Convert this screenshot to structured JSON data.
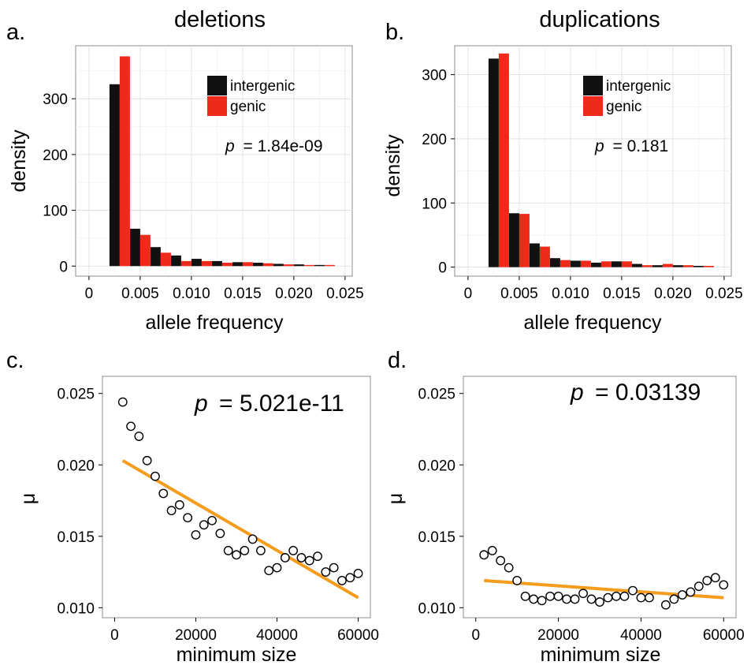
{
  "chart_data": [
    {
      "panel": "a.",
      "type": "bar",
      "title": "deletions",
      "xlabel": "allele frequency",
      "ylabel": "density",
      "annotation_italic": "p",
      "annotation_value": "= 1.84e-09",
      "xlim": [
        -0.0013,
        0.0257
      ],
      "ylim": [
        -18,
        395
      ],
      "xticks": [
        0,
        0.005,
        0.01,
        0.015,
        0.02,
        0.025
      ],
      "xtick_labels": [
        "0",
        "0.005",
        "0.010",
        "0.015",
        "0.020",
        "0.025"
      ],
      "yticks": [
        0,
        100,
        200,
        300
      ],
      "ytick_labels": [
        "0",
        "100",
        "200",
        "300"
      ],
      "grid": true,
      "legend_position": "top-right",
      "bin_width": 0.002,
      "bin_starts": [
        0.002,
        0.004,
        0.006,
        0.008,
        0.01,
        0.012,
        0.014,
        0.016,
        0.018,
        0.02,
        0.022
      ],
      "series": [
        {
          "name": "intergenic",
          "color": "#111111",
          "values": [
            326,
            67,
            34,
            19,
            13,
            9,
            7,
            6,
            4,
            3,
            2
          ]
        },
        {
          "name": "genic",
          "color": "#ee2a1b",
          "values": [
            376,
            56,
            24,
            9,
            9,
            6,
            7,
            5,
            3,
            2,
            2
          ]
        }
      ]
    },
    {
      "panel": "b.",
      "type": "bar",
      "title": "duplications",
      "xlabel": "allele frequency",
      "ylabel": "density",
      "annotation_italic": "p",
      "annotation_value": "= 0.181",
      "xlim": [
        -0.0013,
        0.0257
      ],
      "ylim": [
        -14,
        345
      ],
      "xticks": [
        0,
        0.005,
        0.01,
        0.015,
        0.02,
        0.025
      ],
      "xtick_labels": [
        "0",
        "0.005",
        "0.010",
        "0.015",
        "0.020",
        "0.025"
      ],
      "yticks": [
        0,
        100,
        200,
        300
      ],
      "ytick_labels": [
        "0",
        "100",
        "200",
        "300"
      ],
      "grid": true,
      "legend_position": "top-right",
      "bin_width": 0.002,
      "bin_starts": [
        0.002,
        0.004,
        0.006,
        0.008,
        0.01,
        0.012,
        0.014,
        0.016,
        0.018,
        0.02,
        0.022
      ],
      "series": [
        {
          "name": "intergenic",
          "color": "#111111",
          "values": [
            325,
            84,
            37,
            14,
            10,
            7,
            9,
            5,
            3,
            3,
            2
          ]
        },
        {
          "name": "genic",
          "color": "#ee2a1b",
          "values": [
            333,
            83,
            32,
            11,
            10,
            9,
            9,
            3,
            5,
            3,
            2
          ]
        }
      ]
    },
    {
      "panel": "c.",
      "type": "scatter",
      "xlabel": "minimum size",
      "ylabel": "μ",
      "annotation_italic": "p",
      "annotation_value": "= 5.021e-11",
      "xlim": [
        -3000,
        63000
      ],
      "ylim": [
        0.0093,
        0.0262
      ],
      "xticks": [
        0,
        20000,
        40000,
        60000
      ],
      "xtick_labels": [
        "0",
        "20000",
        "40000",
        "60000"
      ],
      "yticks": [
        0.01,
        0.015,
        0.02,
        0.025
      ],
      "ytick_labels": [
        "0.010",
        "0.015",
        "0.020",
        "0.025"
      ],
      "grid": false,
      "point_color": "#000000",
      "fit_color": "#f39c1e",
      "fit_line": {
        "x": [
          2000,
          60000
        ],
        "y": [
          0.0203,
          0.0107
        ]
      },
      "x": [
        2000,
        4000,
        6000,
        8000,
        10000,
        12000,
        14000,
        16000,
        18000,
        20000,
        22000,
        24000,
        26000,
        28000,
        30000,
        32000,
        34000,
        36000,
        38000,
        40000,
        42000,
        44000,
        46000,
        48000,
        50000,
        52000,
        54000,
        56000,
        58000,
        60000
      ],
      "y": [
        0.0244,
        0.0227,
        0.022,
        0.0203,
        0.0192,
        0.018,
        0.0168,
        0.0172,
        0.0163,
        0.0151,
        0.0158,
        0.0161,
        0.0152,
        0.014,
        0.0137,
        0.014,
        0.0148,
        0.014,
        0.0126,
        0.0128,
        0.0135,
        0.014,
        0.0135,
        0.0133,
        0.0136,
        0.0125,
        0.0128,
        0.0119,
        0.0121,
        0.0124
      ]
    },
    {
      "panel": "d.",
      "type": "scatter",
      "xlabel": "minimum size",
      "ylabel": "μ",
      "annotation_italic": "p",
      "annotation_value": "= 0.03139",
      "xlim": [
        -3000,
        63000
      ],
      "ylim": [
        0.0093,
        0.0262
      ],
      "xticks": [
        0,
        20000,
        40000,
        60000
      ],
      "xtick_labels": [
        "0",
        "20000",
        "40000",
        "60000"
      ],
      "yticks": [
        0.01,
        0.015,
        0.02,
        0.025
      ],
      "ytick_labels": [
        "0.010",
        "0.015",
        "0.020",
        "0.025"
      ],
      "grid": false,
      "point_color": "#000000",
      "fit_color": "#f39c1e",
      "fit_line": {
        "x": [
          2000,
          60000
        ],
        "y": [
          0.0119,
          0.0107
        ]
      },
      "x": [
        2000,
        4000,
        6000,
        8000,
        10000,
        12000,
        14000,
        16000,
        18000,
        20000,
        22000,
        24000,
        26000,
        28000,
        30000,
        32000,
        34000,
        36000,
        38000,
        40000,
        42000,
        44000,
        46000,
        48000,
        50000,
        52000,
        54000,
        56000,
        58000,
        60000
      ],
      "y": [
        0.0137,
        0.014,
        0.0133,
        0.0128,
        0.0119,
        0.0108,
        0.0106,
        0.0105,
        0.0108,
        0.0108,
        0.0106,
        0.0106,
        0.011,
        0.0106,
        0.0104,
        0.0107,
        0.0108,
        0.0108,
        0.0112,
        0.0107,
        0.0107,
        null,
        0.0102,
        0.0106,
        0.0109,
        0.0111,
        0.0115,
        0.0119,
        0.0121,
        0.0116
      ]
    }
  ]
}
